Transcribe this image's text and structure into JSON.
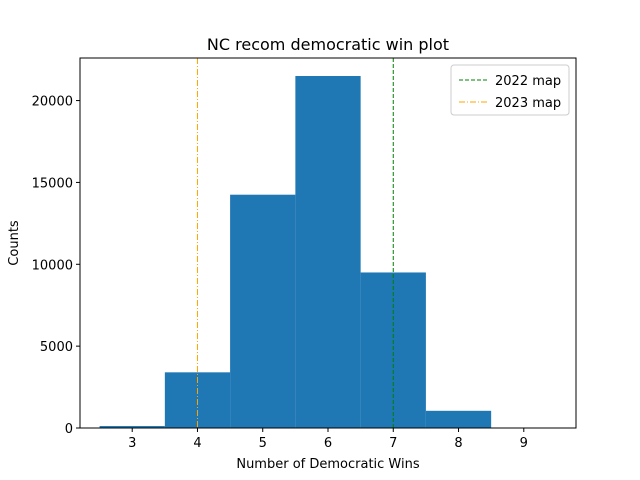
{
  "chart_data": {
    "type": "bar",
    "title": "NC recom democratic win plot",
    "xlabel": "Number of Democratic Wins",
    "ylabel": "Counts",
    "xlim": [
      2.2,
      9.8
    ],
    "ylim": [
      0,
      22600
    ],
    "xticks": [
      3,
      4,
      5,
      6,
      7,
      8,
      9
    ],
    "yticks": [
      0,
      5000,
      10000,
      15000,
      20000
    ],
    "categories": [
      3,
      4,
      5,
      6,
      7,
      8,
      9
    ],
    "values": [
      120,
      3400,
      14250,
      21500,
      9500,
      1050,
      0
    ],
    "bar_color": "#1f77b4",
    "reference_lines": [
      {
        "name": "2022 map",
        "x": 7,
        "color": "#008000",
        "style": "dashed"
      },
      {
        "name": "2023 map",
        "x": 4,
        "color": "#ffa500",
        "style": "dashdot"
      }
    ],
    "legend_position": "top-right",
    "grid": false
  }
}
